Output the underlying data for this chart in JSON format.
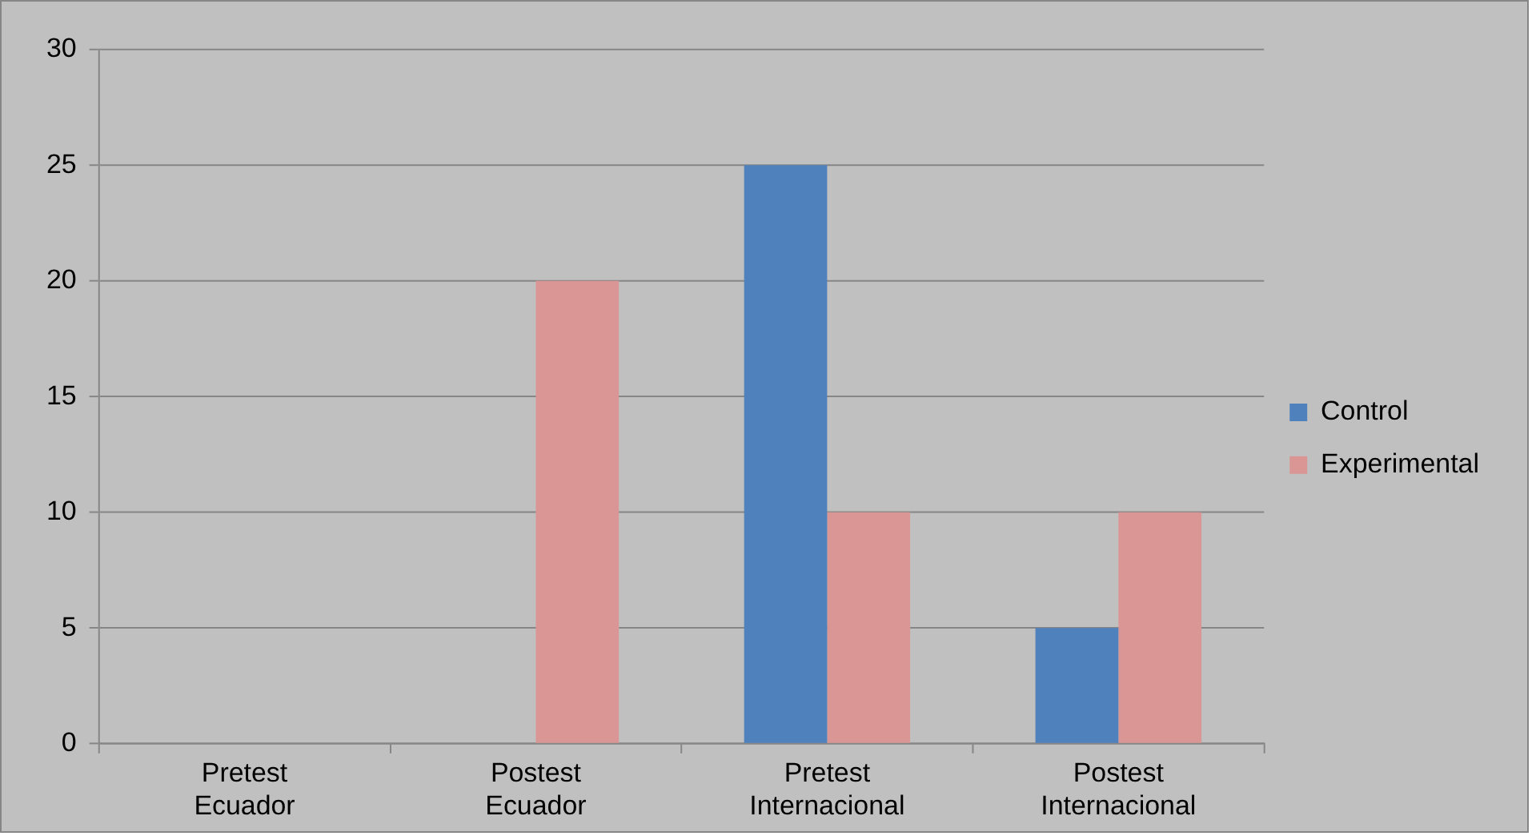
{
  "chart_data": {
    "type": "bar",
    "categories": [
      "Pretest Ecuador",
      "Postest Ecuador",
      "Pretest Internacional",
      "Postest Internacional"
    ],
    "series": [
      {
        "name": "Control",
        "color": "#4f81bd",
        "values": [
          0,
          0,
          25,
          5
        ]
      },
      {
        "name": "Experimental",
        "color": "#d99694",
        "values": [
          0,
          20,
          10,
          10
        ]
      }
    ],
    "ylim": [
      0,
      30
    ],
    "yticks": [
      0,
      5,
      10,
      15,
      20,
      25,
      30
    ],
    "grid": "y",
    "legend": "right"
  }
}
